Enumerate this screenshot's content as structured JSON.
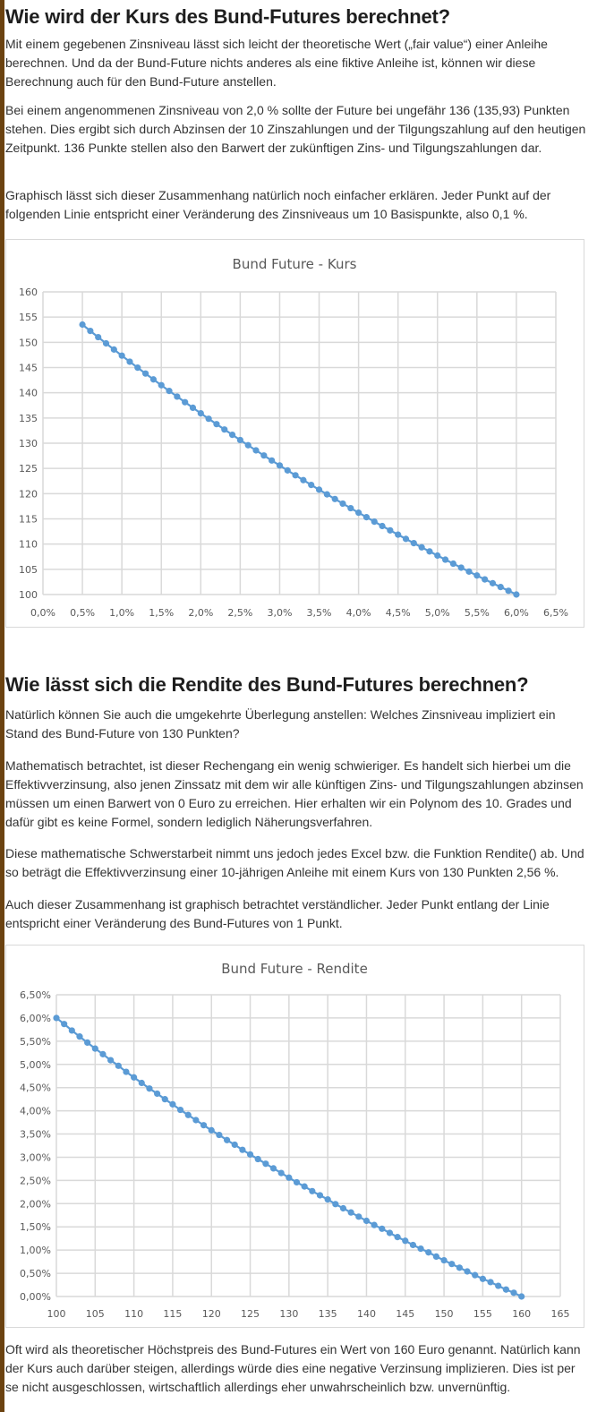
{
  "section1": {
    "heading": "Wie wird der Kurs des Bund-Futures berechnet?",
    "paragraphs": [
      "Mit einem gegebenen Zinsniveau lässt sich leicht der theoretische Wert („fair value“) einer Anleihe berechnen. Und da der Bund-Future nichts anderes als eine fiktive Anleihe ist, können wir diese Berechnung auch für den Bund-Future anstellen.",
      "Bei einem angenommenen Zinsniveau von 2,0 % sollte der Future bei ungefähr 136 (135,93) Punkten stehen. Dies ergibt sich durch Abzinsen der 10 Zinszahlungen und der Tilgungszahlung auf den heutigen Zeitpunkt. 136 Punkte stellen also den Barwert der zukünftigen Zins- und Tilgungszahlungen dar.",
      "Graphisch lässt sich dieser Zusammenhang natürlich noch einfacher erklären. Jeder Punkt auf der folgenden Linie entspricht einer Veränderung des Zinsniveaus um 10 Basispunkte, also 0,1 %."
    ]
  },
  "section2": {
    "heading": "Wie lässt sich die Rendite des Bund-Futures berechnen?",
    "paragraphs": [
      "Natürlich können Sie auch die umgekehrte Überlegung anstellen: Welches Zinsniveau impliziert ein Stand des Bund-Future von 130 Punkten?",
      "Mathematisch betrachtet, ist dieser Rechengang ein wenig schwieriger. Es handelt sich hierbei um die Effektivverzinsung, also jenen Zinssatz mit dem wir alle künftigen Zins- und Tilgungszahlungen abzinsen müssen um einen Barwert von 0 Euro zu erreichen. Hier erhalten wir ein Polynom des 10. Grades und dafür gibt es keine Formel, sondern lediglich Näherungsverfahren.",
      "Diese mathematische Schwerstarbeit nimmt uns jedoch jedes Excel bzw. die Funktion Rendite() ab. Und so beträgt die Effektivverzinsung einer 10-jährigen Anleihe mit einem Kurs von 130 Punkten 2,56 %.",
      "Auch dieser Zusammenhang ist graphisch betrachtet verständlicher. Jeder Punkt entlang der Linie entspricht einer Veränderung des Bund-Futures von 1 Punkt."
    ]
  },
  "section3": {
    "paragraphs": [
      "Oft wird als theoretischer Höchstpreis des Bund-Futures ein Wert von 160 Euro genannt. Natürlich kann der Kurs auch darüber steigen, allerdings würde dies eine negative Verzinsung implizieren. Dies ist per se nicht ausgeschlossen, wirtschaftlich allerdings eher unwahrscheinlich bzw. unvernünftig."
    ]
  },
  "colors": {
    "series": "#5b9bd5",
    "grid": "#d9d9d9",
    "text": "#595959",
    "strip": "#6b4210"
  },
  "chart_data": [
    {
      "type": "line",
      "title": "Bund Future - Kurs",
      "xlabel": "",
      "ylabel": "",
      "xlim": [
        0.0,
        6.5
      ],
      "ylim": [
        100,
        160
      ],
      "x_ticks": [
        "0,0%",
        "0,5%",
        "1,0%",
        "1,5%",
        "2,0%",
        "2,5%",
        "3,0%",
        "3,5%",
        "4,0%",
        "4,5%",
        "5,0%",
        "5,5%",
        "6,0%",
        "6,5%"
      ],
      "y_ticks": [
        "160",
        "155",
        "150",
        "145",
        "140",
        "135",
        "130",
        "125",
        "120",
        "115",
        "110",
        "105",
        "100"
      ],
      "grid": true,
      "markers": true,
      "x": [
        0.5,
        0.6,
        0.7,
        0.8,
        0.9,
        1.0,
        1.1,
        1.2,
        1.3,
        1.4,
        1.5,
        1.6,
        1.7,
        1.8,
        1.9,
        2.0,
        2.1,
        2.2,
        2.3,
        2.4,
        2.5,
        2.6,
        2.7,
        2.8,
        2.9,
        3.0,
        3.1,
        3.2,
        3.3,
        3.4,
        3.5,
        3.6,
        3.7,
        3.8,
        3.9,
        4.0,
        4.1,
        4.2,
        4.3,
        4.4,
        4.5,
        4.6,
        4.7,
        4.8,
        4.9,
        5.0,
        5.1,
        5.2,
        5.3,
        5.4,
        5.5,
        5.6,
        5.7,
        5.8,
        5.9,
        6.0
      ],
      "y": [
        153.52,
        152.26,
        151.02,
        149.79,
        148.57,
        147.36,
        146.16,
        144.98,
        143.81,
        142.65,
        141.5,
        140.36,
        139.24,
        138.13,
        137.03,
        135.93,
        134.85,
        133.78,
        132.72,
        131.67,
        130.63,
        129.6,
        128.58,
        127.57,
        126.57,
        125.59,
        124.61,
        123.64,
        122.68,
        121.73,
        120.79,
        119.86,
        118.94,
        118.03,
        117.12,
        116.22,
        115.33,
        114.45,
        113.58,
        112.72,
        111.87,
        111.03,
        110.19,
        109.36,
        108.54,
        107.72,
        106.92,
        106.12,
        105.33,
        104.55,
        103.77,
        103.0,
        102.24,
        101.49,
        100.74,
        100.0
      ]
    },
    {
      "type": "line",
      "title": "Bund Future -  Rendite",
      "xlabel": "",
      "ylabel": "",
      "xlim": [
        100,
        165
      ],
      "ylim": [
        0,
        6.5
      ],
      "x_ticks": [
        "100",
        "105",
        "110",
        "115",
        "120",
        "125",
        "130",
        "135",
        "140",
        "145",
        "150",
        "155",
        "160",
        "165"
      ],
      "y_ticks": [
        "6,50%",
        "6,00%",
        "5,50%",
        "5,00%",
        "4,50%",
        "4,00%",
        "3,50%",
        "3,00%",
        "2,50%",
        "2,00%",
        "1,50%",
        "1,00%",
        "0,50%",
        "0,00%"
      ],
      "grid": true,
      "markers": true,
      "x": [
        100,
        101,
        102,
        103,
        104,
        105,
        106,
        107,
        108,
        109,
        110,
        111,
        112,
        113,
        114,
        115,
        116,
        117,
        118,
        119,
        120,
        121,
        122,
        123,
        124,
        125,
        126,
        127,
        128,
        129,
        130,
        131,
        132,
        133,
        134,
        135,
        136,
        137,
        138,
        139,
        140,
        141,
        142,
        143,
        144,
        145,
        146,
        147,
        148,
        149,
        150,
        151,
        152,
        153,
        154,
        155,
        156,
        157,
        158,
        159,
        160
      ],
      "y": [
        6.0,
        5.87,
        5.73,
        5.6,
        5.47,
        5.34,
        5.22,
        5.09,
        4.97,
        4.84,
        4.72,
        4.6,
        4.48,
        4.37,
        4.25,
        4.14,
        4.02,
        3.91,
        3.8,
        3.69,
        3.58,
        3.48,
        3.37,
        3.27,
        3.16,
        3.06,
        2.96,
        2.86,
        2.76,
        2.66,
        2.56,
        2.46,
        2.37,
        2.27,
        2.18,
        2.09,
        1.99,
        1.9,
        1.81,
        1.72,
        1.63,
        1.54,
        1.46,
        1.37,
        1.28,
        1.2,
        1.11,
        1.03,
        0.95,
        0.86,
        0.78,
        0.7,
        0.62,
        0.54,
        0.46,
        0.38,
        0.31,
        0.23,
        0.15,
        0.08,
        0.0
      ]
    }
  ]
}
